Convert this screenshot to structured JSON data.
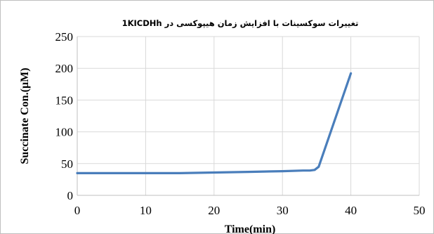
{
  "chart_data": {
    "type": "line",
    "title": "تغییرات سوکسینات با افزایش زمان هیپوکسی در 1KICDHh",
    "xlabel": "Time(min)",
    "ylabel": "Succinate Con.(µM)",
    "xlim": [
      0,
      50
    ],
    "ylim": [
      0,
      250
    ],
    "xticks": [
      0,
      10,
      20,
      30,
      40,
      50
    ],
    "yticks": [
      0,
      50,
      100,
      150,
      200,
      250
    ],
    "grid": true,
    "line_color": "#4a7ebb",
    "series": [
      {
        "x": [
          0,
          10,
          15,
          20,
          25,
          30,
          33,
          34,
          34.7,
          35.3,
          40
        ],
        "y": [
          35,
          35,
          35,
          36,
          37,
          38,
          39,
          39,
          40,
          45,
          192
        ]
      }
    ]
  }
}
